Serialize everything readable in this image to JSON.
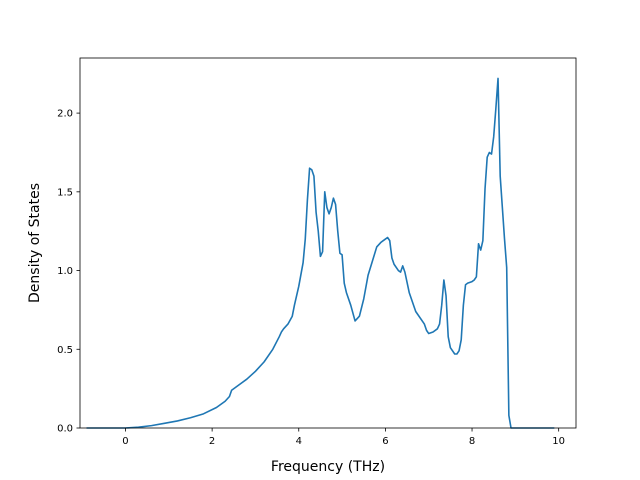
{
  "chart_data": {
    "type": "line",
    "title": "",
    "xlabel": "Frequency (THz)",
    "ylabel": "Density of States",
    "xlim": [
      -1.05,
      10.4
    ],
    "ylim": [
      0.0,
      2.35
    ],
    "xticks": [
      0,
      2,
      4,
      6,
      8,
      10
    ],
    "xtick_labels": [
      "0",
      "2",
      "4",
      "6",
      "8",
      "10"
    ],
    "yticks": [
      0.0,
      0.5,
      1.0,
      1.5,
      2.0
    ],
    "ytick_labels": [
      "0.0",
      "0.5",
      "1.0",
      "1.5",
      "2.0"
    ],
    "grid": false,
    "legend": "none",
    "series": [
      {
        "color": "#1f77b4",
        "x": [
          -0.9,
          0.0,
          0.3,
          0.6,
          0.9,
          1.2,
          1.5,
          1.8,
          2.1,
          2.3,
          2.4,
          2.45,
          2.6,
          2.8,
          3.0,
          3.2,
          3.4,
          3.55,
          3.6,
          3.65,
          3.75,
          3.85,
          3.9,
          4.0,
          4.1,
          4.15,
          4.2,
          4.25,
          4.3,
          4.35,
          4.4,
          4.45,
          4.5,
          4.55,
          4.6,
          4.65,
          4.7,
          4.75,
          4.8,
          4.85,
          4.9,
          4.95,
          5.0,
          5.05,
          5.1,
          5.2,
          5.3,
          5.4,
          5.5,
          5.6,
          5.7,
          5.8,
          5.9,
          6.0,
          6.05,
          6.1,
          6.15,
          6.2,
          6.3,
          6.35,
          6.4,
          6.45,
          6.55,
          6.7,
          6.9,
          6.95,
          7.0,
          7.1,
          7.2,
          7.25,
          7.3,
          7.35,
          7.4,
          7.45,
          7.5,
          7.6,
          7.65,
          7.7,
          7.75,
          7.8,
          7.85,
          7.9,
          8.0,
          8.05,
          8.1,
          8.15,
          8.2,
          8.25,
          8.3,
          8.35,
          8.4,
          8.45,
          8.5,
          8.55,
          8.6,
          8.65,
          8.7,
          8.75,
          8.8,
          8.85,
          8.9,
          8.95,
          9.0,
          9.1,
          9.5,
          9.9
        ],
        "y": [
          0.0,
          0.0,
          0.005,
          0.015,
          0.03,
          0.045,
          0.065,
          0.09,
          0.13,
          0.17,
          0.2,
          0.24,
          0.27,
          0.31,
          0.36,
          0.42,
          0.5,
          0.58,
          0.61,
          0.63,
          0.66,
          0.71,
          0.78,
          0.9,
          1.05,
          1.2,
          1.45,
          1.65,
          1.64,
          1.6,
          1.37,
          1.25,
          1.09,
          1.12,
          1.5,
          1.4,
          1.36,
          1.4,
          1.46,
          1.42,
          1.25,
          1.11,
          1.1,
          0.92,
          0.86,
          0.78,
          0.68,
          0.71,
          0.82,
          0.97,
          1.06,
          1.15,
          1.18,
          1.2,
          1.21,
          1.19,
          1.08,
          1.04,
          1.0,
          0.99,
          1.03,
          0.99,
          0.86,
          0.74,
          0.66,
          0.62,
          0.6,
          0.61,
          0.63,
          0.66,
          0.78,
          0.94,
          0.84,
          0.58,
          0.51,
          0.47,
          0.47,
          0.49,
          0.56,
          0.78,
          0.91,
          0.92,
          0.93,
          0.94,
          0.96,
          1.17,
          1.13,
          1.19,
          1.52,
          1.72,
          1.75,
          1.74,
          1.85,
          2.03,
          2.22,
          1.6,
          1.4,
          1.2,
          1.02,
          0.08,
          0.0,
          0.0,
          0.0,
          0.0,
          0.0,
          0.0
        ]
      }
    ]
  }
}
